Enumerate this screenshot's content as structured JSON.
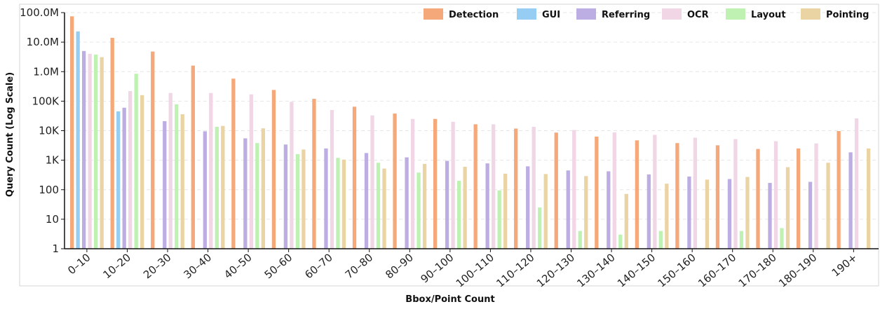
{
  "chart_data": {
    "type": "bar",
    "title": "",
    "xlabel": "Bbox/Point Count",
    "ylabel": "Query Count (Log Scale)",
    "yscale": "log",
    "ylim": [
      1,
      100000000
    ],
    "yticks": [
      1,
      10,
      100,
      1000,
      10000,
      100000,
      1000000,
      10000000,
      100000000
    ],
    "ytick_labels": [
      "1",
      "10",
      "100",
      "1K",
      "10K",
      "100K",
      "1.0M",
      "10.0M",
      "100.0M"
    ],
    "grid": true,
    "legend_position": "top-right",
    "categories": [
      "0–10",
      "10–20",
      "20–30",
      "30–40",
      "40–50",
      "50–60",
      "60–70",
      "70–80",
      "80–90",
      "90–100",
      "100–110",
      "110–120",
      "120–130",
      "130–140",
      "140–150",
      "150–160",
      "160–170",
      "170–180",
      "180–190",
      "190+"
    ],
    "series": [
      {
        "name": "Detection",
        "color": "#F5A97A",
        "values": [
          75000000,
          14000000,
          4800000,
          1600000,
          580000,
          240000,
          120000,
          65000,
          38000,
          25000,
          16500,
          11800,
          8600,
          6300,
          4700,
          3800,
          3200,
          2400,
          2500,
          9700
        ]
      },
      {
        "name": "GUI",
        "color": "#96CDF2",
        "values": [
          23000000,
          45000,
          null,
          null,
          null,
          null,
          null,
          null,
          null,
          null,
          null,
          null,
          null,
          null,
          null,
          null,
          null,
          null,
          null,
          null
        ]
      },
      {
        "name": "Referring",
        "color": "#BCAEE3",
        "values": [
          5000000,
          60000,
          21000,
          9500,
          5500,
          3400,
          2500,
          1750,
          1250,
          950,
          780,
          620,
          450,
          420,
          330,
          280,
          230,
          170,
          185,
          1850
        ]
      },
      {
        "name": "OCR",
        "color": "#F1D6E6",
        "values": [
          4000000,
          220000,
          190000,
          190000,
          170000,
          95000,
          50000,
          33000,
          25000,
          20000,
          16500,
          13500,
          10500,
          8700,
          7200,
          5800,
          5200,
          4400,
          3700,
          26000
        ]
      },
      {
        "name": "Layout",
        "color": "#BFF2B2",
        "values": [
          3800000,
          850000,
          78000,
          13500,
          3800,
          1600,
          1200,
          820,
          380,
          200,
          95,
          25,
          4,
          3,
          4,
          null,
          4,
          5,
          null,
          null
        ]
      },
      {
        "name": "Pointing",
        "color": "#EAD4A4",
        "values": [
          3100000,
          160000,
          36000,
          14500,
          12000,
          2300,
          1050,
          520,
          750,
          600,
          350,
          340,
          290,
          72,
          160,
          220,
          270,
          580,
          820,
          2500
        ]
      }
    ]
  }
}
